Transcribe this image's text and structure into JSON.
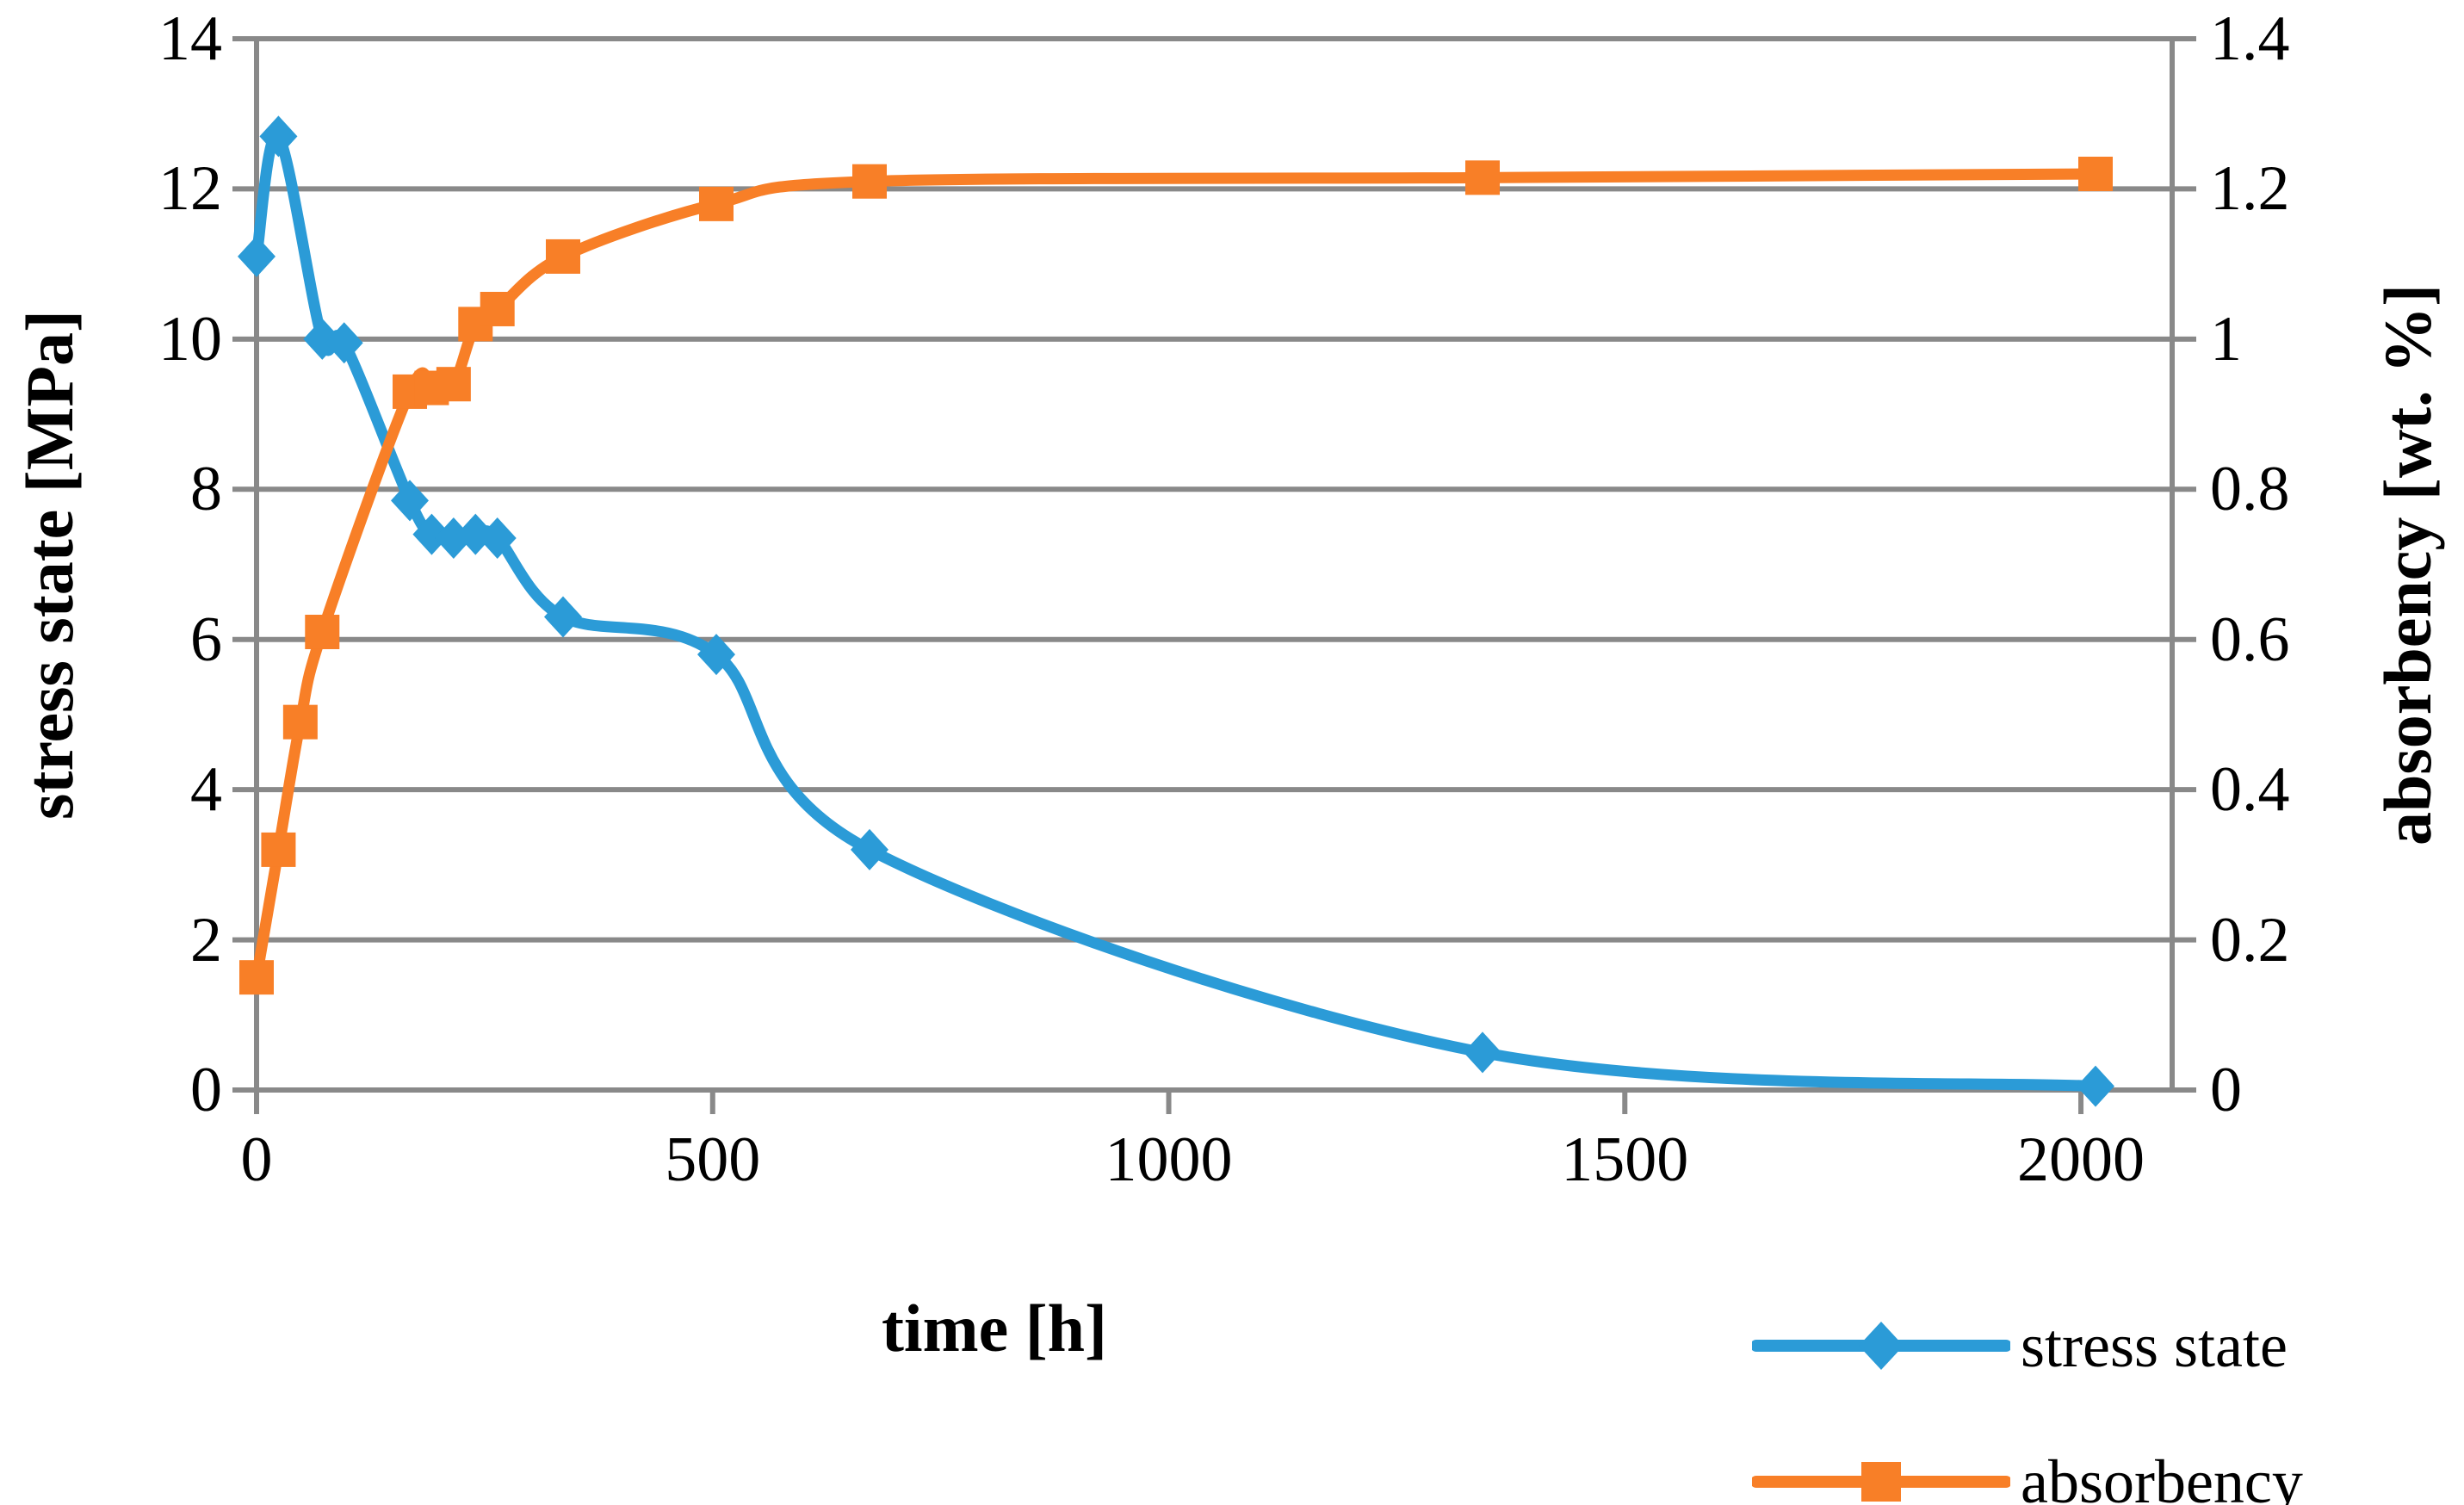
{
  "chart_data": {
    "type": "line",
    "title": "",
    "xlabel": "time [h]",
    "ylabel_left": "stress state [MPa]",
    "ylabel_right": "absorbency [wt. %]",
    "xlim": [
      0,
      2100
    ],
    "x_tick_values": [
      0,
      500,
      1000,
      1500,
      2000
    ],
    "x_tick_labels": [
      "0",
      "500",
      "1000",
      "1500",
      "2000"
    ],
    "left_axis": {
      "lim": [
        0,
        14
      ],
      "tick_values": [
        0,
        2,
        4,
        6,
        8,
        10,
        12,
        14
      ],
      "tick_labels": [
        "0",
        "2",
        "4",
        "6",
        "8",
        "10",
        "12",
        "14"
      ]
    },
    "right_axis": {
      "lim": [
        0,
        1.4
      ],
      "tick_values": [
        0,
        0.2,
        0.4,
        0.6,
        0.8,
        1,
        1.2,
        1.4
      ],
      "tick_labels": [
        "0",
        "0.2",
        "0.4",
        "0.6",
        "0.8",
        "1",
        "1.2",
        "1.4"
      ]
    },
    "grid": true,
    "legend_position": "bottom-right",
    "legend": [
      "stress state",
      "absorbency"
    ],
    "series": [
      {
        "name": "stress state",
        "axis": "left",
        "marker": "diamond",
        "color": "#2B9BD7",
        "x": [
          0,
          24,
          72,
          96,
          168,
          192,
          216,
          240,
          264,
          336,
          504,
          672,
          1344,
          2016
        ],
        "y": [
          11.1,
          12.7,
          10.0,
          9.95,
          7.85,
          7.4,
          7.35,
          7.4,
          7.35,
          6.3,
          5.8,
          3.2,
          0.5,
          0.05
        ]
      },
      {
        "name": "absorbency",
        "axis": "right",
        "marker": "square",
        "color": "#F87F27",
        "x": [
          0,
          24,
          48,
          72,
          168,
          192,
          216,
          240,
          264,
          336,
          504,
          672,
          1344,
          2016
        ],
        "y": [
          0.15,
          0.32,
          0.49,
          0.61,
          0.93,
          0.935,
          0.94,
          1.02,
          1.04,
          1.11,
          1.18,
          1.21,
          1.215,
          1.22
        ]
      }
    ]
  },
  "colors": {
    "axis": "#898989",
    "grid": "#898989",
    "background": "#FFFFFF",
    "text": "#000000"
  }
}
